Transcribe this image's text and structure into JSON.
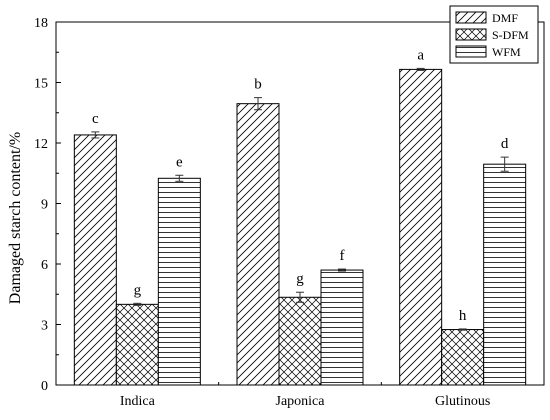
{
  "chart_data": {
    "type": "bar",
    "categories": [
      "Indica",
      "Japonica",
      "Glutinous"
    ],
    "ylabel": "Damaged starch content/%",
    "xlabel": "",
    "ylim": [
      0,
      18
    ],
    "yticks": [
      0,
      3,
      6,
      9,
      12,
      15,
      18
    ],
    "grid": false,
    "legend_position": "top-right",
    "series": [
      {
        "name": "DMF",
        "pattern": "diagonal-hatch",
        "values": [
          12.4,
          13.95,
          15.65
        ],
        "errors": [
          0.15,
          0.3,
          0.05
        ],
        "letters": [
          "c",
          "b",
          "a"
        ]
      },
      {
        "name": "S-DFM",
        "pattern": "cross-hatch",
        "values": [
          4.0,
          4.35,
          2.75
        ],
        "errors": [
          0.05,
          0.25,
          0.03
        ],
        "letters": [
          "g",
          "g",
          "h"
        ]
      },
      {
        "name": "WFM",
        "pattern": "horizontal-lines",
        "values": [
          10.25,
          5.7,
          10.95
        ],
        "errors": [
          0.15,
          0.05,
          0.35
        ],
        "letters": [
          "e",
          "f",
          "d"
        ]
      }
    ]
  }
}
